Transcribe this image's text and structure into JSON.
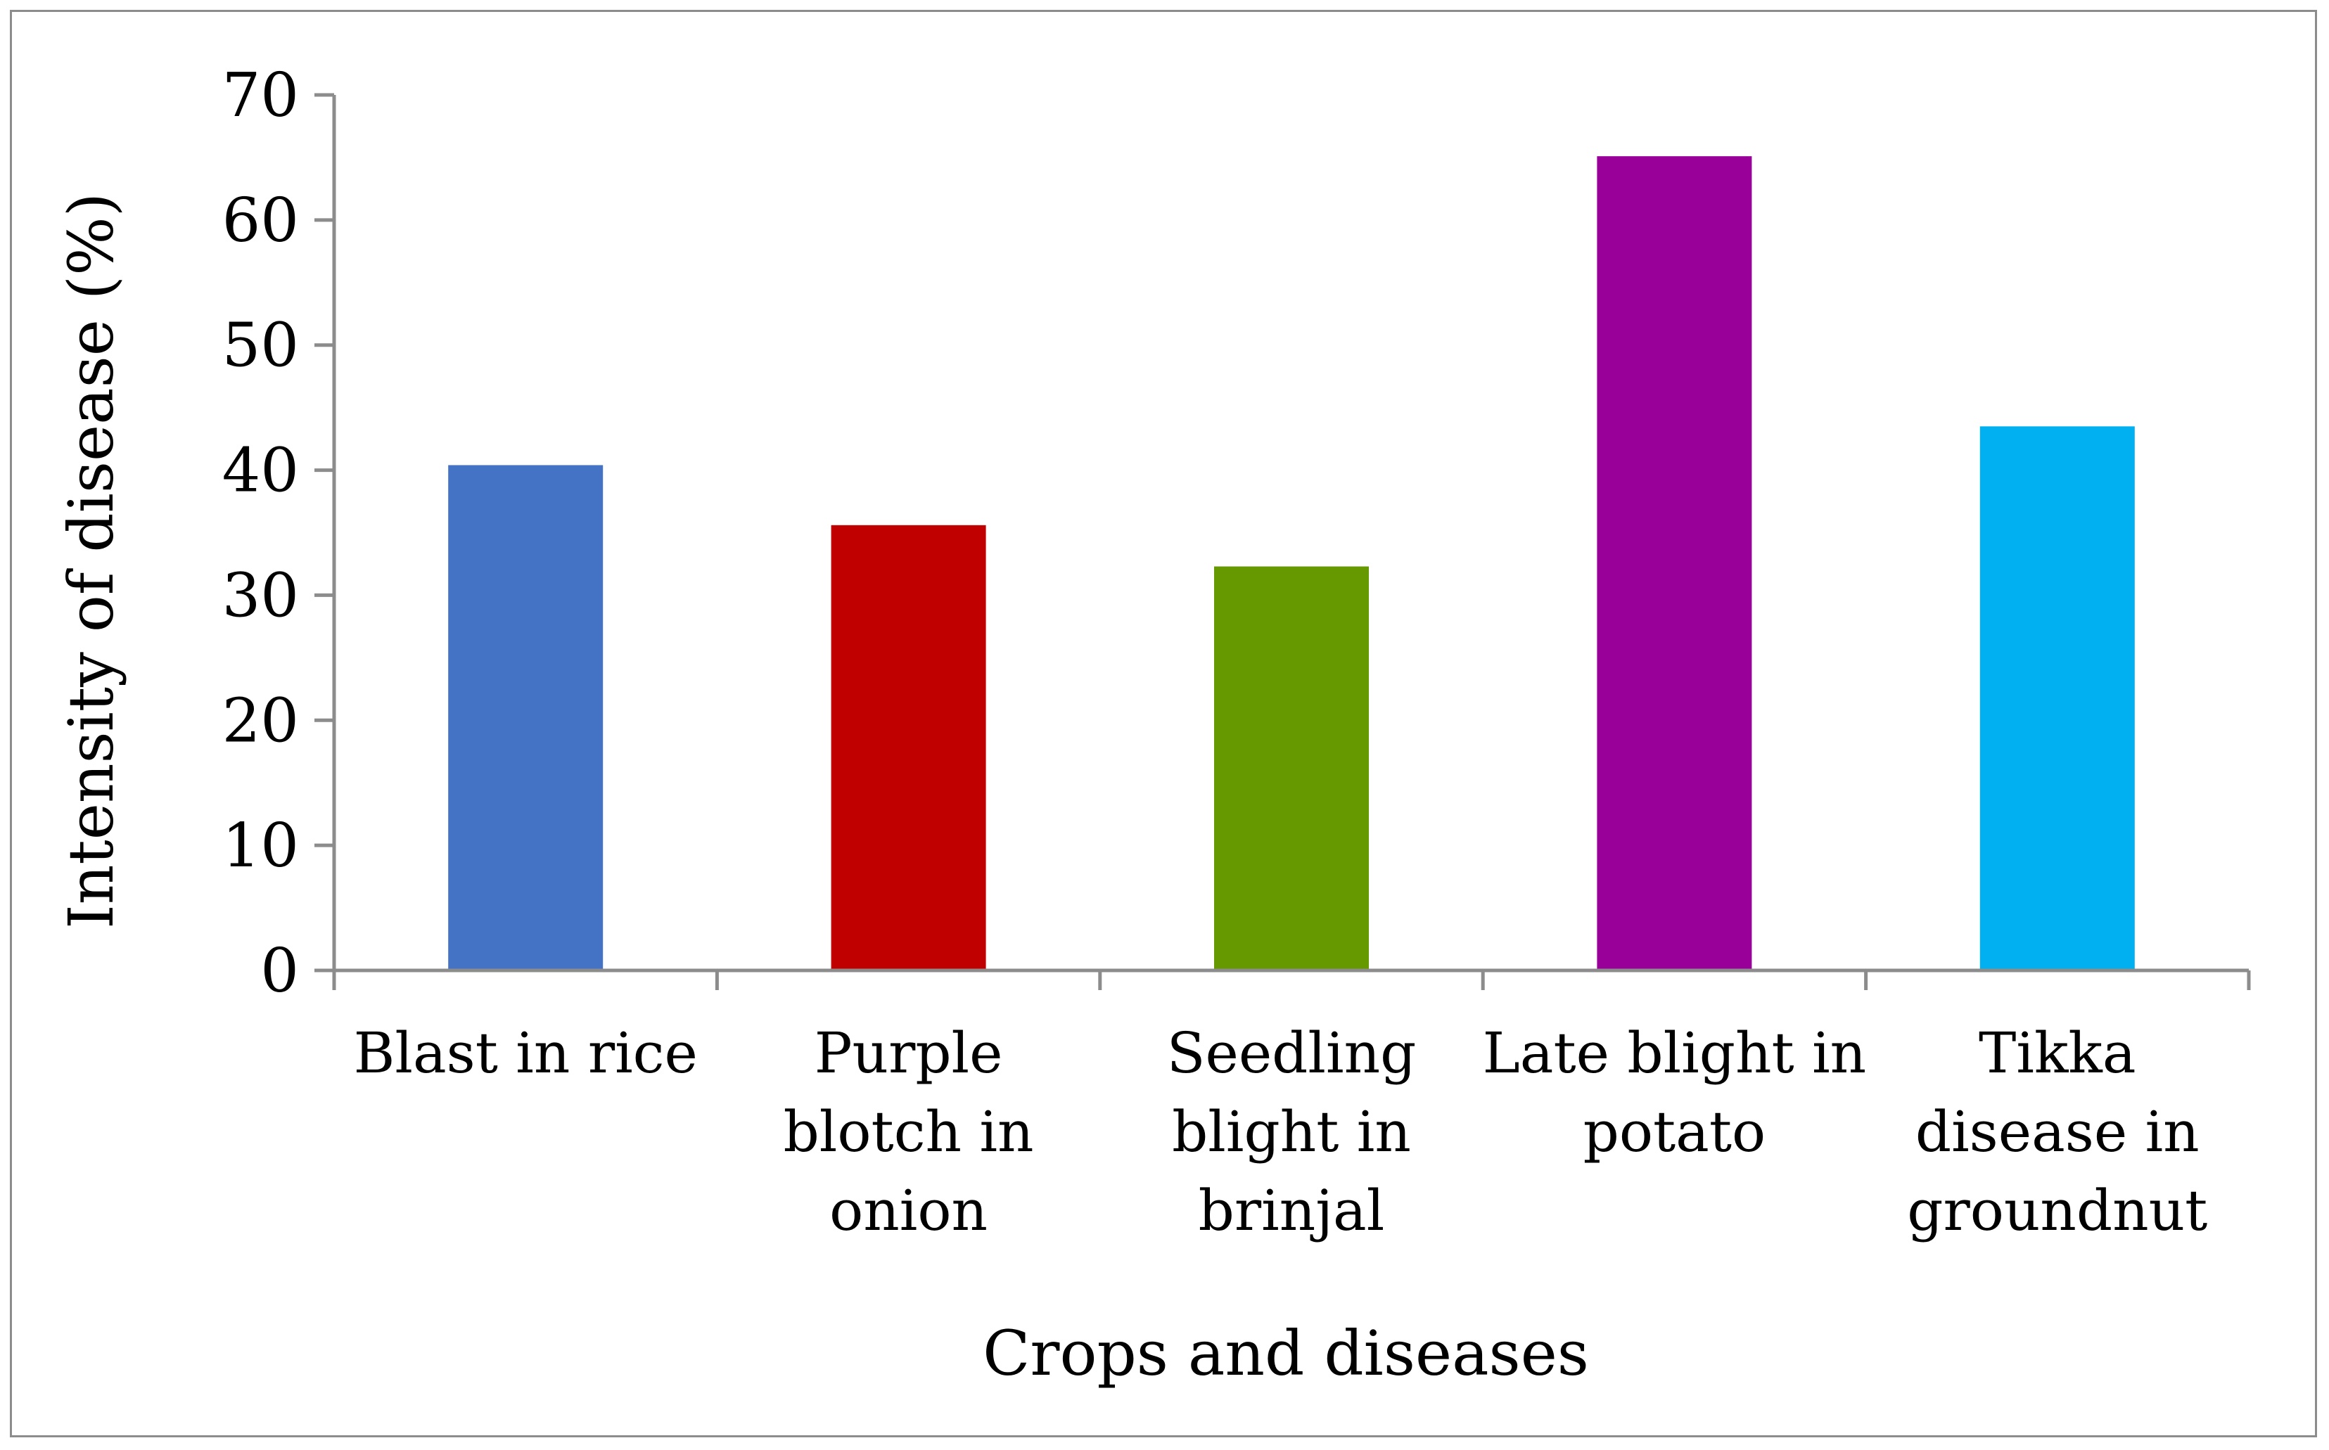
{
  "chart_data": {
    "type": "bar",
    "title": "",
    "xlabel": "Crops and diseases",
    "ylabel": "Intensity of disease (%)",
    "ylim": [
      0,
      70
    ],
    "yticks": [
      0,
      10,
      20,
      30,
      40,
      50,
      60,
      70
    ],
    "grid": false,
    "legend": "none",
    "categories": [
      [
        "Blast in rice"
      ],
      [
        "Purple",
        "blotch in",
        "onion"
      ],
      [
        "Seedling",
        "blight in",
        "brinjal"
      ],
      [
        "Late blight in",
        "potato"
      ],
      [
        "Tikka",
        "disease in",
        "groundnut"
      ]
    ],
    "category_names": [
      "Blast in rice",
      "Purple blotch in onion",
      "Seedling blight in brinjal",
      "Late blight in potato",
      "Tikka disease in groundnut"
    ],
    "values": [
      40.4,
      35.6,
      32.3,
      65.1,
      43.5
    ],
    "colors": [
      "#4472C4",
      "#C00000",
      "#669900",
      "#990099",
      "#00B0F0"
    ]
  }
}
